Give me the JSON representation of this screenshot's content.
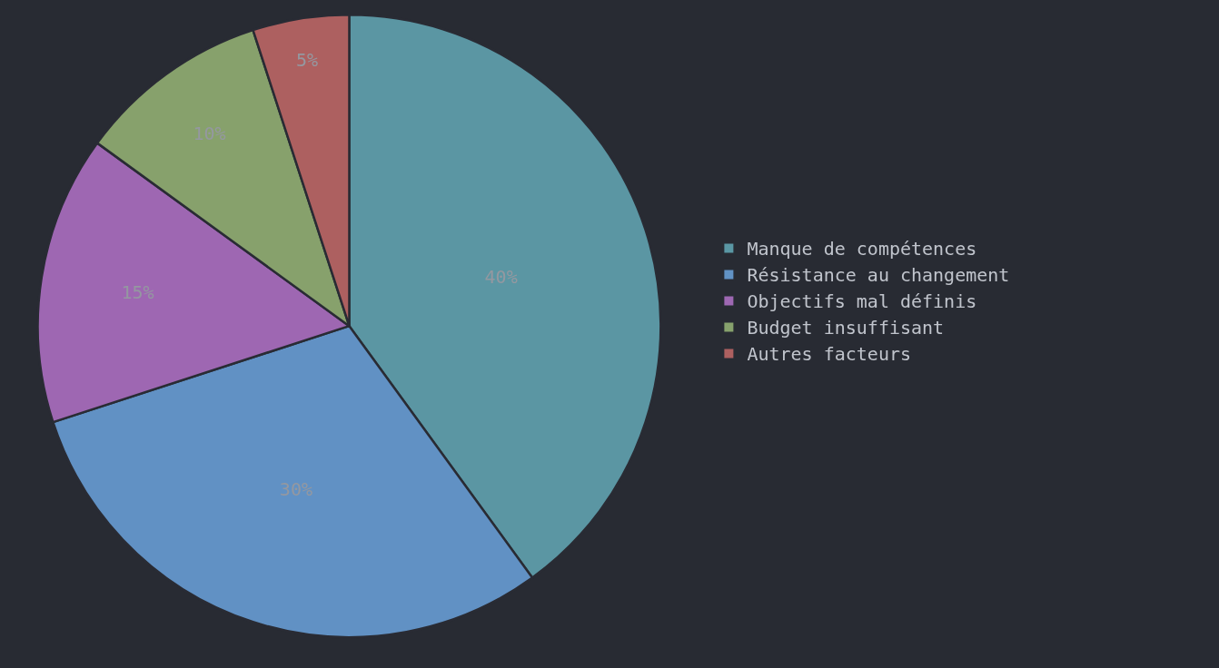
{
  "chart_data": {
    "type": "pie",
    "categories": [
      "Manque de compétences",
      "Résistance au changement",
      "Objectifs mal définis",
      "Budget insuffisant",
      "Autres facteurs"
    ],
    "values": [
      40,
      30,
      15,
      10,
      5
    ],
    "value_labels": [
      "40%",
      "30%",
      "15%",
      "10%",
      "5%"
    ],
    "colors": [
      "#6ab6c4",
      "#72b0ee",
      "#c07ad8",
      "#a3c47e",
      "#d4706e"
    ],
    "data_labels": true,
    "legend": "right"
  }
}
